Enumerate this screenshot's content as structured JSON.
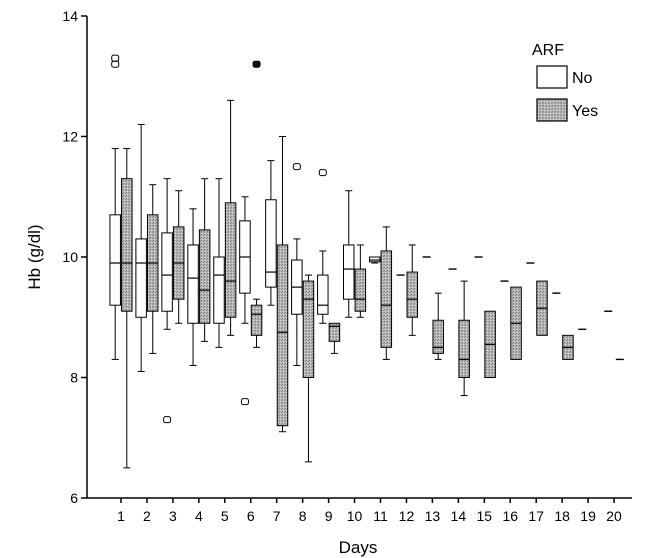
{
  "chart_data": {
    "type": "boxplot",
    "xlabel": "Days",
    "ylabel": "Hb (g/dl)",
    "ylim": [
      6,
      14
    ],
    "yticks": [
      6,
      8,
      10,
      12,
      14
    ],
    "categories": [
      "1",
      "2",
      "3",
      "4",
      "5",
      "6",
      "7",
      "8",
      "9",
      "10",
      "11",
      "12",
      "13",
      "14",
      "15",
      "16",
      "17",
      "18",
      "19",
      "20"
    ],
    "legend": {
      "title": "ARF",
      "placement": "top-right",
      "entries": [
        "No",
        "Yes"
      ]
    },
    "colors": {
      "No": "#ffffff",
      "Yes": "#b8b8b8"
    },
    "series": [
      {
        "name": "No",
        "boxes": [
          {
            "day": 1,
            "min": 8.3,
            "q1": 9.2,
            "median": 9.9,
            "q3": 10.7,
            "max": 11.8,
            "outliers": [
              13.2,
              13.3
            ]
          },
          {
            "day": 2,
            "min": 8.1,
            "q1": 9.0,
            "median": 9.9,
            "q3": 10.3,
            "max": 12.2,
            "outliers": []
          },
          {
            "day": 3,
            "min": 8.8,
            "q1": 9.1,
            "median": 9.7,
            "q3": 10.4,
            "max": 11.3,
            "outliers": [
              7.3
            ]
          },
          {
            "day": 4,
            "min": 8.2,
            "q1": 8.9,
            "median": 9.65,
            "q3": 10.2,
            "max": 10.8,
            "outliers": []
          },
          {
            "day": 5,
            "min": 8.5,
            "q1": 8.9,
            "median": 9.7,
            "q3": 10.0,
            "max": 11.3,
            "outliers": []
          },
          {
            "day": 6,
            "min": 8.9,
            "q1": 9.4,
            "median": 10.0,
            "q3": 10.6,
            "max": 11.0,
            "outliers": [
              7.6
            ]
          },
          {
            "day": 7,
            "min": 9.2,
            "q1": 9.5,
            "median": 9.75,
            "q3": 10.95,
            "max": 11.6,
            "outliers": []
          },
          {
            "day": 8,
            "min": 8.2,
            "q1": 9.05,
            "median": 9.5,
            "q3": 9.95,
            "max": 10.3,
            "outliers": [
              11.5
            ]
          },
          {
            "day": 9,
            "min": 8.9,
            "q1": 9.05,
            "median": 9.2,
            "q3": 9.7,
            "max": 10.1,
            "outliers": [
              11.4
            ]
          },
          {
            "day": 10,
            "min": 9.0,
            "q1": 9.3,
            "median": 9.8,
            "q3": 10.2,
            "max": 11.1,
            "outliers": []
          },
          {
            "day": 11,
            "min": 9.9,
            "q1": 9.92,
            "median": 9.95,
            "q3": 10.0,
            "max": 10.0,
            "outliers": []
          },
          {
            "day": 12,
            "min": 9.7,
            "q1": 9.7,
            "median": 9.7,
            "q3": 9.7,
            "max": 9.7,
            "outliers": []
          },
          {
            "day": 13,
            "min": 10.0,
            "q1": 10.0,
            "median": 10.0,
            "q3": 10.0,
            "max": 10.0,
            "outliers": []
          },
          {
            "day": 14,
            "min": 9.8,
            "q1": 9.8,
            "median": 9.8,
            "q3": 9.8,
            "max": 9.8,
            "outliers": []
          },
          {
            "day": 15,
            "min": 10.0,
            "q1": 10.0,
            "median": 10.0,
            "q3": 10.0,
            "max": 10.0,
            "outliers": []
          },
          {
            "day": 16,
            "min": 9.6,
            "q1": 9.6,
            "median": 9.6,
            "q3": 9.6,
            "max": 9.6,
            "outliers": []
          },
          {
            "day": 17,
            "min": 9.9,
            "q1": 9.9,
            "median": 9.9,
            "q3": 9.9,
            "max": 9.9,
            "outliers": []
          },
          {
            "day": 18,
            "min": 9.4,
            "q1": 9.4,
            "median": 9.4,
            "q3": 9.4,
            "max": 9.4,
            "outliers": []
          },
          {
            "day": 19,
            "min": 8.8,
            "q1": 8.8,
            "median": 8.8,
            "q3": 8.8,
            "max": 8.8,
            "outliers": []
          },
          {
            "day": 20,
            "min": 9.1,
            "q1": 9.1,
            "median": 9.1,
            "q3": 9.1,
            "max": 9.1,
            "outliers": []
          }
        ]
      },
      {
        "name": "Yes",
        "boxes": [
          {
            "day": 1,
            "min": 6.5,
            "q1": 9.1,
            "median": 9.9,
            "q3": 11.3,
            "max": 11.8,
            "outliers": []
          },
          {
            "day": 2,
            "min": 8.4,
            "q1": 9.1,
            "median": 9.9,
            "q3": 10.7,
            "max": 11.2,
            "outliers": []
          },
          {
            "day": 3,
            "min": 8.9,
            "q1": 9.3,
            "median": 9.9,
            "q3": 10.5,
            "max": 11.1,
            "outliers": []
          },
          {
            "day": 4,
            "min": 8.6,
            "q1": 8.9,
            "median": 9.45,
            "q3": 10.45,
            "max": 11.3,
            "outliers": []
          },
          {
            "day": 5,
            "min": 8.7,
            "q1": 9.0,
            "median": 9.6,
            "q3": 10.9,
            "max": 12.6,
            "outliers": []
          },
          {
            "day": 6,
            "min": 8.5,
            "q1": 8.7,
            "median": 9.05,
            "q3": 9.2,
            "max": 9.3,
            "outliers": [
              13.2
            ]
          },
          {
            "day": 7,
            "min": 7.1,
            "q1": 7.2,
            "median": 8.75,
            "q3": 10.2,
            "max": 12.0,
            "outliers": []
          },
          {
            "day": 8,
            "min": 6.6,
            "q1": 8.0,
            "median": 9.3,
            "q3": 9.6,
            "max": 9.7,
            "outliers": []
          },
          {
            "day": 9,
            "min": 8.4,
            "q1": 8.6,
            "median": 8.85,
            "q3": 8.9,
            "max": 8.9,
            "outliers": []
          },
          {
            "day": 10,
            "min": 9.0,
            "q1": 9.1,
            "median": 9.3,
            "q3": 9.8,
            "max": 10.2,
            "outliers": []
          },
          {
            "day": 11,
            "min": 8.3,
            "q1": 8.5,
            "median": 9.2,
            "q3": 10.1,
            "max": 10.5,
            "outliers": []
          },
          {
            "day": 12,
            "min": 8.7,
            "q1": 9.0,
            "median": 9.3,
            "q3": 9.75,
            "max": 10.2,
            "outliers": []
          },
          {
            "day": 13,
            "min": 8.3,
            "q1": 8.4,
            "median": 8.5,
            "q3": 8.95,
            "max": 9.4,
            "outliers": []
          },
          {
            "day": 14,
            "min": 7.7,
            "q1": 8.0,
            "median": 8.3,
            "q3": 8.95,
            "max": 9.6,
            "outliers": []
          },
          {
            "day": 15,
            "min": 8.0,
            "q1": 8.0,
            "median": 8.55,
            "q3": 9.1,
            "max": 9.1,
            "outliers": []
          },
          {
            "day": 16,
            "min": 8.3,
            "q1": 8.3,
            "median": 8.9,
            "q3": 9.5,
            "max": 9.5,
            "outliers": []
          },
          {
            "day": 17,
            "min": 8.7,
            "q1": 8.7,
            "median": 9.15,
            "q3": 9.6,
            "max": 9.6,
            "outliers": []
          },
          {
            "day": 18,
            "min": 8.3,
            "q1": 8.3,
            "median": 8.5,
            "q3": 8.7,
            "max": 8.7,
            "outliers": []
          },
          {
            "day": 20,
            "min": 8.3,
            "q1": 8.3,
            "median": 8.3,
            "q3": 8.3,
            "max": 8.3,
            "outliers": []
          }
        ]
      }
    ]
  }
}
